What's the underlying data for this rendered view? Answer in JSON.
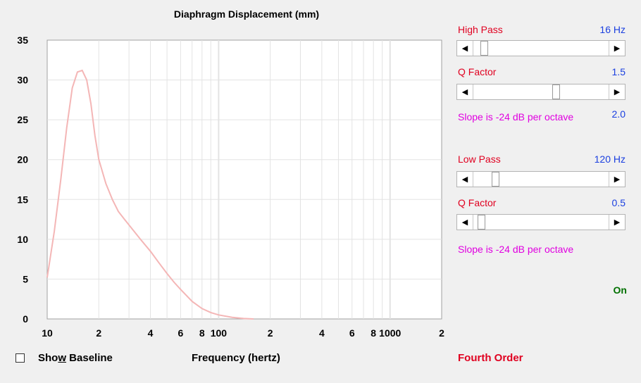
{
  "chart_data": {
    "type": "line",
    "title": "Diaphragm Displacement (mm)",
    "xlabel": "Frequency (hertz)",
    "ylabel": "",
    "xscale": "log",
    "xlim": [
      10,
      2000
    ],
    "ylim": [
      0,
      35
    ],
    "grid": true,
    "y_ticks": [
      "0",
      "5",
      "10",
      "15",
      "20",
      "25",
      "30",
      "35"
    ],
    "x_ticks": [
      {
        "value": 10,
        "label": "10"
      },
      {
        "value": 20,
        "label": "2"
      },
      {
        "value": 40,
        "label": "4"
      },
      {
        "value": 60,
        "label": "6"
      },
      {
        "value": 80,
        "label": "8"
      },
      {
        "value": 100,
        "label": "100"
      },
      {
        "value": 200,
        "label": "2"
      },
      {
        "value": 400,
        "label": "4"
      },
      {
        "value": 600,
        "label": "6"
      },
      {
        "value": 800,
        "label": "8"
      },
      {
        "value": 1000,
        "label": "1000"
      },
      {
        "value": 2000,
        "label": "2"
      }
    ],
    "series": [
      {
        "color": "#f4b6b6",
        "x": [
          10,
          11,
          12,
          13,
          14,
          15,
          16,
          17,
          18,
          19,
          20,
          22,
          24,
          26,
          28,
          30,
          35,
          40,
          45,
          50,
          55,
          60,
          70,
          80,
          90,
          100,
          120,
          140,
          160
        ],
        "y": [
          5.2,
          11,
          17.5,
          24,
          29,
          31,
          31.2,
          30,
          27,
          23,
          20,
          17,
          15,
          13.5,
          12.6,
          11.8,
          10,
          8.5,
          7,
          5.7,
          4.6,
          3.7,
          2.2,
          1.3,
          0.8,
          0.5,
          0.2,
          0.05,
          0
        ]
      }
    ]
  },
  "controls": {
    "high_pass": {
      "label": "High Pass",
      "value": "16 Hz",
      "position": 0.06
    },
    "high_q": {
      "label": "Q Factor",
      "value": "1.5",
      "position": 0.62
    },
    "high_slope": {
      "text": "Slope is -24 dB per octave",
      "value": "2.0"
    },
    "low_pass": {
      "label": "Low Pass",
      "value": "120 Hz",
      "position": 0.15
    },
    "low_q": {
      "label": "Q Factor",
      "value": "0.5",
      "position": 0.04
    },
    "low_slope": {
      "text": "Slope is -24 dB per octave"
    },
    "status": "On",
    "order": "Fourth Order"
  },
  "baseline": {
    "label_pre": "Sho",
    "label_key": "w",
    "label_post": " Baseline",
    "checked": false
  },
  "colors": {
    "curve": "#f4b6b6",
    "label_red": "#e00020",
    "value_blue": "#1a3fe0",
    "slope_magenta": "#e000e0",
    "on_green": "#007000"
  }
}
